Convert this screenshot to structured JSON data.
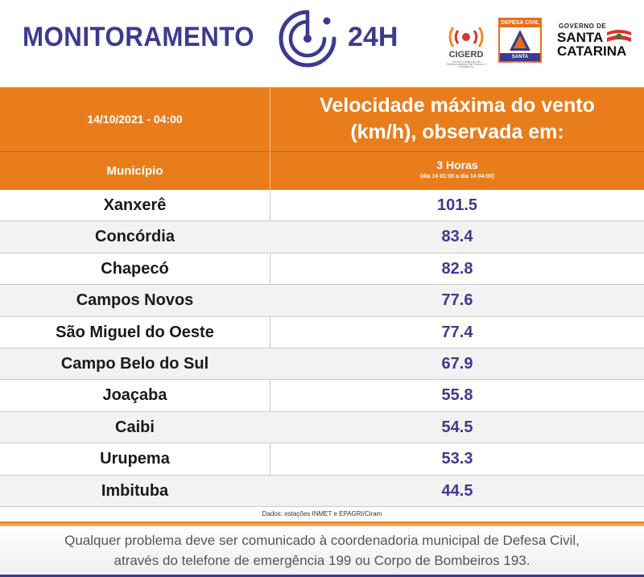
{
  "header": {
    "title": "MONITORAMENTO",
    "suffix": "24H",
    "logos": {
      "cigerd": "CIGERD",
      "cigerd_sub": "Centro Integrado de Gerenciamento de Riscos e Desastres",
      "defesa_civil_top": "DEFESA CIVIL",
      "defesa_civil_bottom": "SANTA CATARINA",
      "governo_line1": "GOVERNO DE",
      "governo_line2": "SANTA",
      "governo_line3": "CATARINA"
    },
    "colors": {
      "brand": "#3c3a8f",
      "accent": "#e97d1c"
    }
  },
  "table": {
    "date": "14/10/2021 - 04:00",
    "title_line1": "Velocidade máxima do vento",
    "title_line2": "(km/h), observada em:",
    "column_municipio": "Município",
    "column_period": "3 Horas",
    "column_period_sub": "(dia 14 01:00 a dia 14 04:00)",
    "rows": [
      {
        "municipio": "Xanxerê",
        "valor": "101.5"
      },
      {
        "municipio": "Concórdia",
        "valor": "83.4"
      },
      {
        "municipio": "Chapecó",
        "valor": "82.8"
      },
      {
        "municipio": "Campos Novos",
        "valor": "77.6"
      },
      {
        "municipio": "São Miguel do Oeste",
        "valor": "77.4"
      },
      {
        "municipio": "Campo Belo do Sul",
        "valor": "67.9"
      },
      {
        "municipio": "Joaçaba",
        "valor": "55.8"
      },
      {
        "municipio": "Caibi",
        "valor": "54.5"
      },
      {
        "municipio": "Urupema",
        "valor": "53.3"
      },
      {
        "municipio": "Imbituba",
        "valor": "44.5"
      }
    ],
    "source": "Dados: estações INMET e EPAGRI/Ciram"
  },
  "footer": {
    "line1": "Qualquer problema deve ser comunicado à coordenadoria municipal de Defesa Civil,",
    "line2": "através do telefone de emergência 199 ou Corpo de Bombeiros 193."
  }
}
